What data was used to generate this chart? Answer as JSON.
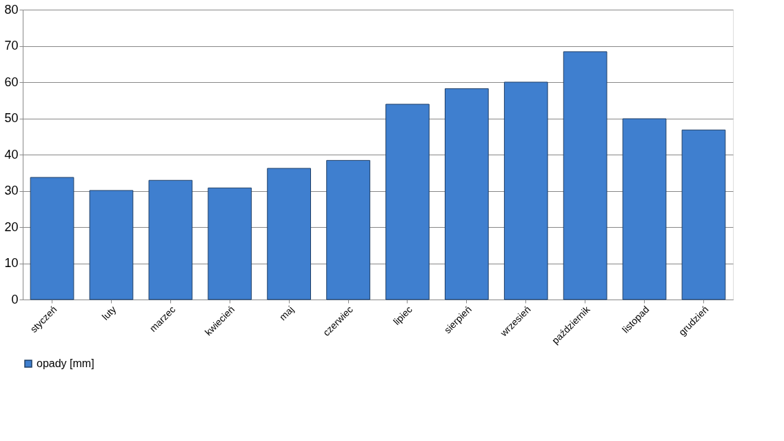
{
  "chart_data": {
    "type": "bar",
    "categories": [
      "styczeń",
      "luty",
      "marzec",
      "kwiecień",
      "maj",
      "czerwiec",
      "lipiec",
      "sierpień",
      "wrzesień",
      "październik",
      "listopad",
      "grudzień"
    ],
    "series": [
      {
        "name": "opady [mm]",
        "color": "#3f7fcf",
        "values": [
          33.7,
          30.1,
          32.9,
          30.8,
          36.2,
          38.4,
          53.9,
          58.2,
          60.0,
          68.4,
          49.9,
          46.8
        ]
      }
    ],
    "ylim": [
      0,
      80
    ],
    "yticks": [
      0,
      10,
      20,
      30,
      40,
      50,
      60,
      70,
      80
    ],
    "grid": "y",
    "legend": "bottom"
  }
}
